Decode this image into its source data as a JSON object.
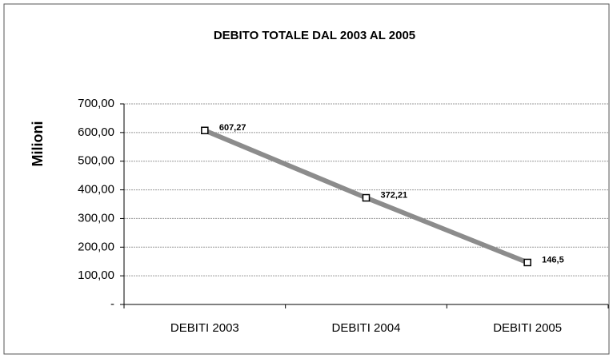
{
  "chart_data": {
    "type": "line",
    "title": "DEBITO TOTALE DAL 2003 AL 2005",
    "y_label": "Milioni",
    "categories": [
      "DEBITI 2003",
      "DEBITI 2004",
      "DEBITI 2005"
    ],
    "series": [
      {
        "name": "Debito totale",
        "color": "#8c8c8c",
        "values": [
          607.27,
          372.21,
          146.5
        ],
        "value_labels": [
          "607,27",
          "372,21",
          "146,5"
        ]
      }
    ],
    "ylim": [
      0,
      700
    ],
    "yticks": [
      {
        "value": 0,
        "label": "-"
      },
      {
        "value": 100,
        "label": "100,00"
      },
      {
        "value": 200,
        "label": "200,00"
      },
      {
        "value": 300,
        "label": "300,00"
      },
      {
        "value": 400,
        "label": "400,00"
      },
      {
        "value": 500,
        "label": "500,00"
      },
      {
        "value": 600,
        "label": "600,00"
      },
      {
        "value": 700,
        "label": "700,00"
      }
    ],
    "grid": true
  }
}
